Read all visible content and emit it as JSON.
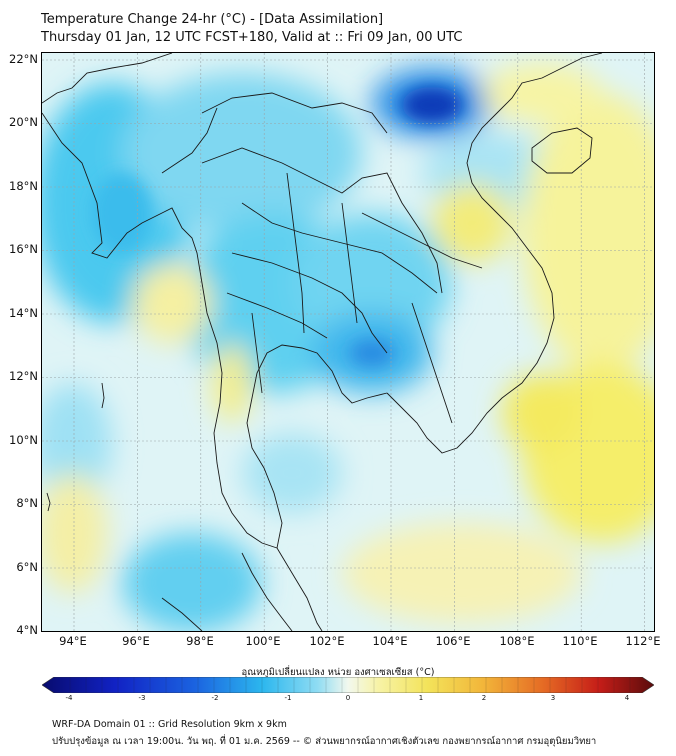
{
  "title": {
    "line1": "Temperature Change 24-hr (°C) - [Data Assimilation]",
    "line2": "Thursday 01 Jan, 12 UTC FCST+180, Valid at :: Fri 09 Jan, 00 UTC"
  },
  "map": {
    "lat_labels": [
      "22°N",
      "20°N",
      "18°N",
      "16°N",
      "14°N",
      "12°N",
      "10°N",
      "8°N",
      "6°N",
      "4°N"
    ],
    "lon_labels": [
      "94°E",
      "96°E",
      "98°E",
      "100°E",
      "102°E",
      "104°E",
      "106°E",
      "108°E",
      "110°E",
      "112°E"
    ],
    "lat_range": [
      4,
      22.2
    ],
    "lon_range": [
      93,
      112.3
    ],
    "gridlines": true,
    "colors": {
      "cold_extreme": "#0a1a8c",
      "cold_strong": "#1a6fe0",
      "cold": "#3fc6ef",
      "cool": "#a6e3f5",
      "neutral": "#e8f6f5",
      "warm": "#f7f29a",
      "warm_strong": "#f2e24a",
      "hot": "#d2301c",
      "hot_extreme": "#6b0d0d",
      "border": "#1a1a1a"
    }
  },
  "colorbar": {
    "title": "อุณหภูมิเปลี่ยนแปลง หน่วย องศาเซลเซียส (°C)",
    "ticks": [
      "-4",
      "-3",
      "-2",
      "-1",
      "0",
      "1",
      "2",
      "3",
      "4"
    ],
    "range": [
      -4,
      4
    ]
  },
  "footer": {
    "line1": "WRF-DA Domain 01 :: Grid Resolution 9km x 9km",
    "line2": "ปรับปรุงข้อมูล ณ เวลา 19:00น. วัน พฤ. ที่ 01 ม.ค. 2569 -- © ส่วนพยากรณ์อากาศเชิงตัวเลข กองพยากรณ์อากาศ กรมอุตุนิยมวิทยา"
  }
}
